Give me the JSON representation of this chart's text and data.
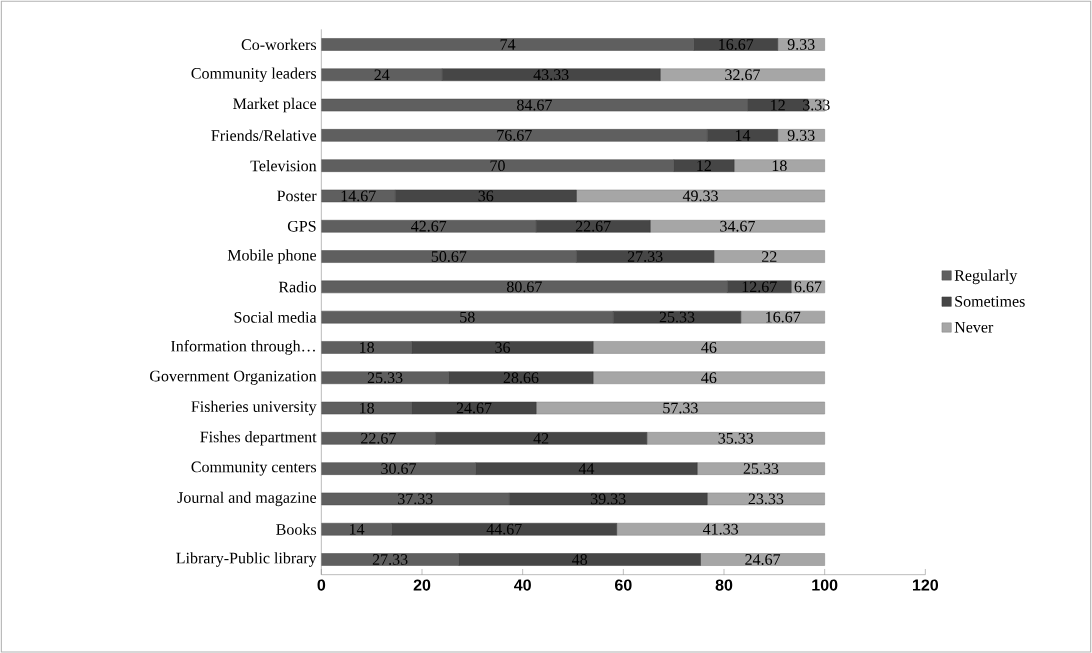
{
  "chart_data": {
    "type": "bar",
    "orientation": "horizontal",
    "stacked": true,
    "data_labels": true,
    "legend": "right",
    "categories": [
      "Co-workers",
      "Community leaders",
      "Market place",
      "Friends/Relative",
      "Television",
      "Poster",
      "GPS",
      "Mobile phone",
      "Radio",
      "Social media",
      "Information through…",
      "Government Organization",
      "Fisheries university",
      "Fishes department",
      "Community centers",
      "Journal and magazine",
      "Books",
      "Library-Public library"
    ],
    "series": [
      {
        "name": "Regularly",
        "color": "#5f5f5f",
        "values": [
          74,
          24,
          84.67,
          76.67,
          70,
          14.67,
          42.67,
          50.67,
          80.67,
          58,
          18,
          25.33,
          18,
          22.67,
          30.67,
          37.33,
          14,
          27.33
        ]
      },
      {
        "name": "Sometimes",
        "color": "#464646",
        "values": [
          16.67,
          43.33,
          12,
          14,
          12,
          36,
          22.67,
          27.33,
          12.67,
          25.33,
          36,
          28.66,
          24.67,
          42,
          44,
          39.33,
          44.67,
          48
        ]
      },
      {
        "name": "Never",
        "color": "#a6a6a6",
        "values": [
          9.33,
          32.67,
          3.33,
          9.33,
          18,
          49.33,
          34.67,
          22,
          6.67,
          16.67,
          46,
          46,
          57.33,
          35.33,
          25.33,
          23.33,
          41.33,
          24.67
        ]
      }
    ],
    "xlim": [
      0,
      120
    ],
    "xticks": [
      0,
      20,
      40,
      60,
      80,
      100,
      120
    ]
  }
}
